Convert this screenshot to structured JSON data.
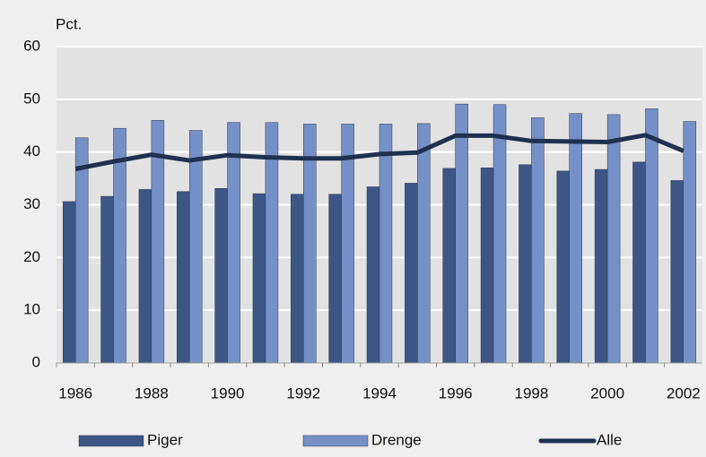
{
  "chart_data": {
    "type": "bar_line",
    "y_label": "Pct.",
    "categories": [
      "1986",
      null,
      "1988",
      null,
      "1990",
      null,
      "1992",
      null,
      "1994",
      null,
      "1996",
      null,
      "1998",
      null,
      "2000",
      null,
      "2002"
    ],
    "series": [
      {
        "name": "Piger",
        "type": "bar",
        "color": "#3d5686",
        "values": [
          30.6,
          31.6,
          32.9,
          32.5,
          33.1,
          32.1,
          32.0,
          32.0,
          33.4,
          34.1,
          36.9,
          37.0,
          37.6,
          36.4,
          36.7,
          38.1,
          34.6
        ]
      },
      {
        "name": "Drenge",
        "type": "bar",
        "color": "#7590c7",
        "values": [
          42.7,
          44.5,
          46.0,
          44.1,
          45.6,
          45.6,
          45.3,
          45.3,
          45.3,
          45.4,
          49.1,
          49.0,
          46.5,
          47.3,
          47.1,
          48.2,
          45.8
        ]
      },
      {
        "name": "Alle",
        "type": "line",
        "color": "#1f3050",
        "values": [
          36.8,
          38.2,
          39.5,
          38.4,
          39.4,
          39.0,
          38.8,
          38.8,
          39.6,
          39.9,
          43.1,
          43.1,
          42.1,
          42.0,
          41.9,
          43.2,
          40.2
        ]
      }
    ],
    "ylim": [
      0,
      60
    ],
    "yticks": [
      0,
      10,
      20,
      30,
      40,
      50,
      60
    ],
    "grid": true,
    "legend": "bottom"
  }
}
